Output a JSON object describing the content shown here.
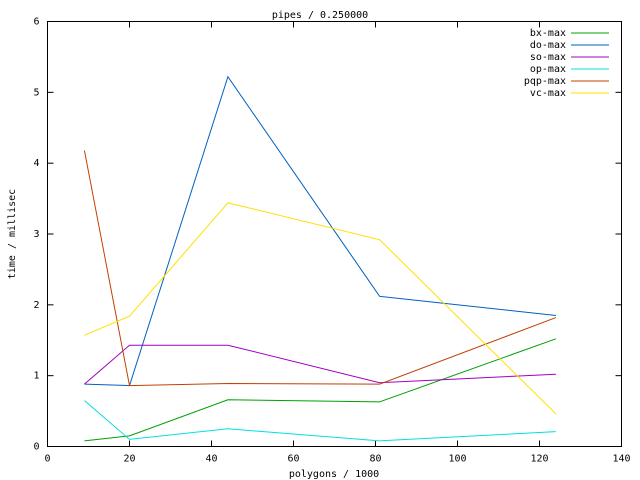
{
  "chart_data": {
    "type": "line",
    "title": "pipes / 0.250000",
    "x_label": "polygons / 1000",
    "y_label": "time / millisec",
    "x": [
      9,
      20,
      44,
      81,
      124
    ],
    "series": [
      {
        "name": "bx-max",
        "color": "#00a000",
        "values": [
          0.08,
          0.15,
          0.66,
          0.63,
          1.52
        ]
      },
      {
        "name": "do-max",
        "color": "#0060c0",
        "values": [
          0.88,
          0.86,
          5.22,
          2.12,
          1.85
        ]
      },
      {
        "name": "so-max",
        "color": "#a000c0",
        "values": [
          0.88,
          1.43,
          1.43,
          0.9,
          1.02
        ]
      },
      {
        "name": "op-max",
        "color": "#00e0e0",
        "values": [
          0.65,
          0.1,
          0.25,
          0.08,
          0.21
        ]
      },
      {
        "name": "pqp-max",
        "color": "#c04000",
        "values": [
          4.18,
          0.86,
          0.89,
          0.88,
          1.82
        ]
      },
      {
        "name": "vc-max",
        "color": "#ffe000",
        "values": [
          1.57,
          1.84,
          3.44,
          2.92,
          0.46
        ]
      }
    ],
    "xlim": [
      0,
      140
    ],
    "xticks": [
      0,
      20,
      40,
      60,
      80,
      100,
      120,
      140
    ],
    "ylim": [
      0,
      6
    ],
    "yticks": [
      0,
      1,
      2,
      3,
      4,
      5,
      6
    ],
    "legend": "top-right"
  }
}
